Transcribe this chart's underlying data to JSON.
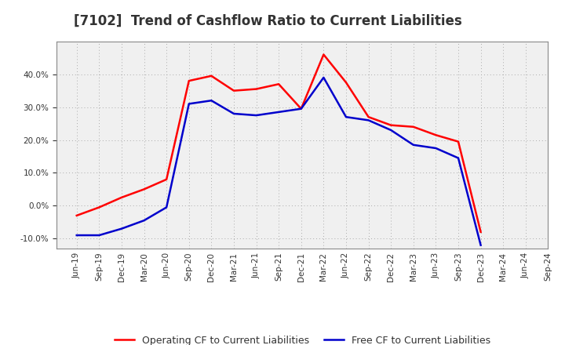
{
  "title": "[7102]  Trend of Cashflow Ratio to Current Liabilities",
  "x_labels": [
    "Jun-19",
    "Sep-19",
    "Dec-19",
    "Mar-20",
    "Jun-20",
    "Sep-20",
    "Dec-20",
    "Mar-21",
    "Jun-21",
    "Sep-21",
    "Dec-21",
    "Mar-22",
    "Jun-22",
    "Sep-22",
    "Dec-22",
    "Mar-23",
    "Jun-23",
    "Sep-23",
    "Dec-23",
    "Mar-24",
    "Jun-24",
    "Sep-24"
  ],
  "operating_cf": [
    -3.0,
    -0.5,
    2.5,
    5.0,
    8.0,
    38.0,
    39.5,
    35.0,
    35.5,
    37.0,
    29.5,
    46.0,
    37.5,
    27.0,
    24.5,
    24.0,
    21.5,
    19.5,
    -8.0,
    null,
    null,
    null
  ],
  "free_cf": [
    -9.0,
    -9.0,
    -7.0,
    -4.5,
    -0.5,
    31.0,
    32.0,
    28.0,
    27.5,
    28.5,
    29.5,
    39.0,
    27.0,
    26.0,
    23.0,
    18.5,
    17.5,
    14.5,
    -12.0,
    null,
    null,
    null
  ],
  "operating_color": "#FF0000",
  "free_color": "#0000CC",
  "ylim": [
    -13,
    50
  ],
  "yticks": [
    -10.0,
    0.0,
    10.0,
    20.0,
    30.0,
    40.0
  ],
  "background_color": "#FFFFFF",
  "plot_bg_color": "#F0F0F0",
  "grid_color": "#AAAAAA",
  "title_fontsize": 12,
  "legend_fontsize": 9,
  "tick_fontsize": 7.5
}
